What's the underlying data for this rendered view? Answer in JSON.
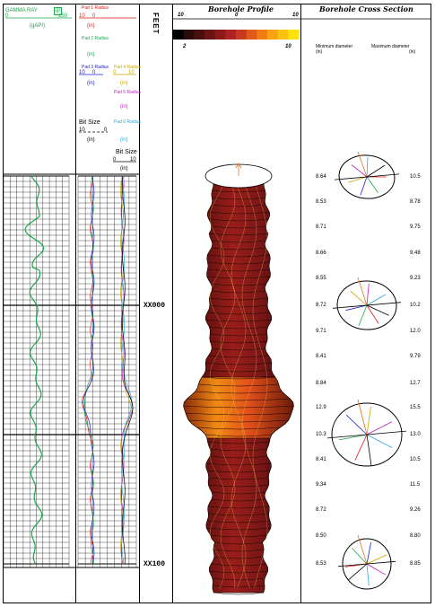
{
  "tracks": {
    "gamma": {
      "title": "GAMMA RAY",
      "mnemonic": "gr",
      "min": "0",
      "max": "150",
      "unit": "(gAPI)"
    },
    "radius": {
      "pads": [
        {
          "label": "Pad 1 Radius",
          "unit": "(in)",
          "color": "#e01818"
        },
        {
          "label": "Pad 2 Radius",
          "unit": "(in)",
          "color": "#1aa64a"
        },
        {
          "label": "Pad 3 Radius",
          "unit": "(in)",
          "color": "#2222cc"
        },
        {
          "label": "Pad 4 Radius",
          "unit": "(in)",
          "color": "#c9a800"
        },
        {
          "label": "Pad 5 Radius",
          "unit": "(in)",
          "color": "#c020c0"
        },
        {
          "label": "Pad 6 Radius",
          "unit": "(in)",
          "color": "#2fa8d8"
        }
      ],
      "scale_left": "10",
      "scale_mid": "0",
      "scale_right": "10",
      "bit_size": "Bit Size",
      "bit_size_unit": "(in)",
      "bit_scale_left": "10",
      "bit_scale_right": "0",
      "bit_size_2": "Bit Size",
      "bit2_scale_left": "0",
      "bit2_scale_right": "10",
      "bit2_unit": "(in)"
    },
    "depth": {
      "unit": "FEET",
      "marks": [
        "XX000",
        "XX100"
      ]
    },
    "profile": {
      "title": "Borehole Profile",
      "scale_left": "10",
      "scale_mid": "0",
      "scale_right": "10",
      "color_min": "2",
      "color_max": "10",
      "colorbar": [
        "#000000",
        "#2a0a0a",
        "#4a0f0f",
        "#6b1414",
        "#8c1a1a",
        "#ad2222",
        "#c83a1e",
        "#e05a1a",
        "#f07d14",
        "#f8a214",
        "#fcc410",
        "#ffe20a"
      ]
    },
    "cross_section": {
      "title": "Borehole Cross Section",
      "min_label": "Minimum diameter",
      "max_label": "Maximum diameter",
      "min_unit": "(in)",
      "max_unit": "(in)",
      "rows": [
        {
          "min": "8.64",
          "max": "10.5"
        },
        {
          "min": "8.53",
          "max": "8.78"
        },
        {
          "min": "8.71",
          "max": "9.75"
        },
        {
          "min": "8.66",
          "max": "9.48"
        },
        {
          "min": "8.55",
          "max": "9.23"
        },
        {
          "min": "8.72",
          "max": "10.2"
        },
        {
          "min": "9.71",
          "max": "12.0"
        },
        {
          "min": "8.41",
          "max": "9.79"
        },
        {
          "min": "8.84",
          "max": "12.7"
        },
        {
          "min": "12.9",
          "max": "15.5"
        },
        {
          "min": "10.3",
          "max": "13.0"
        },
        {
          "min": "8.41",
          "max": "10.5"
        },
        {
          "min": "9.34",
          "max": "11.5"
        },
        {
          "min": "8.72",
          "max": "9.26"
        },
        {
          "min": "8.50",
          "max": "8.80"
        },
        {
          "min": "8.53",
          "max": "8.85"
        }
      ]
    }
  }
}
